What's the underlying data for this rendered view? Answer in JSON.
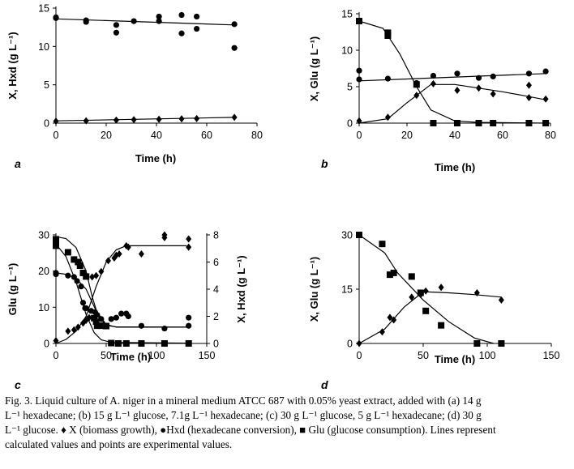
{
  "chart_data": [
    {
      "id": "a",
      "type": "scatter",
      "panel_label": "a",
      "xlabel": "Time (h)",
      "ylabel": "X, Hxd (g L⁻¹)",
      "xlim": [
        0,
        80
      ],
      "ylim": [
        0,
        15
      ],
      "xticks": [
        0,
        20,
        40,
        60,
        80
      ],
      "yticks": [
        0,
        5,
        10,
        15
      ],
      "series": [
        {
          "name": "Hxd",
          "marker": "circle",
          "points": [
            [
              0,
              13.8
            ],
            [
              0,
              13.7
            ],
            [
              12,
              13.4
            ],
            [
              12,
              13.2
            ],
            [
              24,
              12.8
            ],
            [
              24,
              11.8
            ],
            [
              31,
              13.3
            ],
            [
              41,
              13.9
            ],
            [
              41,
              13.3
            ],
            [
              50,
              14.1
            ],
            [
              50,
              11.7
            ],
            [
              56,
              13.9
            ],
            [
              56,
              12.3
            ],
            [
              71,
              12.9
            ],
            [
              71,
              9.8
            ]
          ]
        },
        {
          "name": "X",
          "marker": "diamond",
          "points": [
            [
              0,
              0.25
            ],
            [
              12,
              0.3
            ],
            [
              24,
              0.4
            ],
            [
              31,
              0.45
            ],
            [
              41,
              0.5
            ],
            [
              50,
              0.55
            ],
            [
              56,
              0.6
            ],
            [
              71,
              0.75
            ]
          ]
        },
        {
          "name": "Hxd-fit",
          "marker": "line",
          "points": [
            [
              0,
              13.6
            ],
            [
              71,
              12.8
            ]
          ]
        },
        {
          "name": "X-fit",
          "marker": "line",
          "points": [
            [
              0,
              0.3
            ],
            [
              71,
              0.75
            ]
          ]
        }
      ]
    },
    {
      "id": "b",
      "type": "scatter",
      "panel_label": "b",
      "xlabel": "Time (h)",
      "ylabel": "X, Glu (g L⁻¹)",
      "xlim": [
        0,
        80
      ],
      "ylim": [
        0,
        15
      ],
      "xticks": [
        0,
        20,
        40,
        60,
        80
      ],
      "yticks": [
        0,
        5,
        10,
        15
      ],
      "series": [
        {
          "name": "Glu",
          "marker": "square",
          "points": [
            [
              0,
              14.0
            ],
            [
              12,
              12.4
            ],
            [
              12,
              12.0
            ],
            [
              24,
              5.3
            ],
            [
              31,
              0.0
            ],
            [
              41,
              0.0
            ],
            [
              50,
              0.0
            ],
            [
              56,
              0.0
            ],
            [
              71,
              0.0
            ],
            [
              78,
              0.0
            ]
          ]
        },
        {
          "name": "Hxd",
          "marker": "circle",
          "points": [
            [
              0,
              7.2
            ],
            [
              0,
              6.0
            ],
            [
              12,
              6.1
            ],
            [
              24,
              5.5
            ],
            [
              31,
              6.5
            ],
            [
              41,
              6.8
            ],
            [
              50,
              6.2
            ],
            [
              56,
              6.4
            ],
            [
              71,
              6.8
            ],
            [
              78,
              7.1
            ]
          ]
        },
        {
          "name": "X",
          "marker": "diamond",
          "points": [
            [
              0,
              0.3
            ],
            [
              12,
              0.8
            ],
            [
              24,
              3.8
            ],
            [
              31,
              5.4
            ],
            [
              41,
              4.5
            ],
            [
              50,
              4.8
            ],
            [
              56,
              4.0
            ],
            [
              71,
              5.2
            ],
            [
              71,
              3.5
            ],
            [
              78,
              3.3
            ]
          ]
        },
        {
          "name": "Glu-fit",
          "marker": "line",
          "points": [
            [
              0,
              14.0
            ],
            [
              10,
              13.0
            ],
            [
              17,
              9.5
            ],
            [
              24,
              5.0
            ],
            [
              30,
              1.8
            ],
            [
              40,
              0.3
            ],
            [
              50,
              0.1
            ],
            [
              78,
              0.0
            ]
          ]
        },
        {
          "name": "Hxd-fit",
          "marker": "line",
          "points": [
            [
              0,
              5.8
            ],
            [
              78,
              6.8
            ]
          ]
        },
        {
          "name": "X-fit",
          "marker": "line",
          "points": [
            [
              0,
              0.0
            ],
            [
              12,
              0.6
            ],
            [
              20,
              2.8
            ],
            [
              30,
              5.3
            ],
            [
              40,
              5.3
            ],
            [
              50,
              4.8
            ],
            [
              60,
              4.3
            ],
            [
              70,
              3.7
            ],
            [
              78,
              3.2
            ]
          ]
        }
      ]
    },
    {
      "id": "c",
      "type": "scatter",
      "panel_label": "c",
      "xlabel": "Time (h)",
      "ylabel": "Glu (g L⁻¹)",
      "y2label": "X, Hxd (g L⁻¹)",
      "xlim": [
        0,
        150
      ],
      "ylim": [
        0,
        30
      ],
      "y2lim": [
        0,
        8
      ],
      "xticks": [
        0,
        50,
        100,
        150
      ],
      "yticks": [
        0,
        10,
        20,
        30
      ],
      "y2ticks": [
        0,
        2,
        4,
        6,
        8
      ],
      "series": [
        {
          "name": "Glu",
          "axis": "left",
          "marker": "square",
          "points": [
            [
              0,
              28.8
            ],
            [
              0,
              27.8
            ],
            [
              0,
              27.0
            ],
            [
              12,
              25.2
            ],
            [
              18,
              23.2
            ],
            [
              22,
              22.5
            ],
            [
              24,
              21.5
            ],
            [
              27,
              19.5
            ],
            [
              30,
              18.5
            ],
            [
              38,
              7.0
            ],
            [
              40,
              6.0
            ],
            [
              41,
              4.9
            ],
            [
              45,
              4.9
            ],
            [
              50,
              4.8
            ],
            [
              55,
              0.1
            ],
            [
              62,
              0.0
            ],
            [
              70,
              0.0
            ],
            [
              85,
              0.0
            ],
            [
              108,
              0.0
            ],
            [
              132,
              0.0
            ]
          ]
        },
        {
          "name": "Hxd",
          "axis": "right",
          "marker": "circle",
          "points": [
            [
              0,
              5.2
            ],
            [
              0,
              5.1
            ],
            [
              12,
              5.0
            ],
            [
              18,
              4.9
            ],
            [
              21,
              4.6
            ],
            [
              25,
              4.2
            ],
            [
              27,
              3.0
            ],
            [
              29,
              2.6
            ],
            [
              30,
              2.6
            ],
            [
              35,
              2.4
            ],
            [
              39,
              2.3
            ],
            [
              41,
              2.1
            ],
            [
              45,
              1.8
            ],
            [
              55,
              1.8
            ],
            [
              60,
              1.9
            ],
            [
              65,
              2.2
            ],
            [
              70,
              2.2
            ],
            [
              72,
              2.0
            ],
            [
              85,
              1.3
            ],
            [
              108,
              1.1
            ],
            [
              132,
              1.9
            ],
            [
              132,
              1.3
            ]
          ]
        },
        {
          "name": "X",
          "axis": "right",
          "marker": "diamond",
          "points": [
            [
              0,
              0.2
            ],
            [
              12,
              0.9
            ],
            [
              18,
              1.0
            ],
            [
              22,
              1.2
            ],
            [
              27,
              1.5
            ],
            [
              30,
              1.7
            ],
            [
              33,
              1.9
            ],
            [
              36,
              4.9
            ],
            [
              40,
              5.0
            ],
            [
              45,
              5.3
            ],
            [
              52,
              6.1
            ],
            [
              58,
              6.3
            ],
            [
              60,
              6.5
            ],
            [
              63,
              6.6
            ],
            [
              70,
              7.2
            ],
            [
              72,
              7.1
            ],
            [
              85,
              6.6
            ],
            [
              108,
              8.0
            ],
            [
              108,
              7.8
            ],
            [
              132,
              7.7
            ],
            [
              132,
              7.1
            ]
          ]
        },
        {
          "name": "Glu-fit",
          "axis": "left",
          "marker": "line",
          "points": [
            [
              0,
              29.5
            ],
            [
              10,
              29.0
            ],
            [
              20,
              26.5
            ],
            [
              30,
              20.0
            ],
            [
              36,
              13.0
            ],
            [
              42,
              7.5
            ],
            [
              50,
              5.0
            ],
            [
              60,
              4.6
            ],
            [
              130,
              4.5
            ]
          ]
        },
        {
          "name": "Hxd-fit",
          "axis": "right",
          "marker": "line",
          "points": [
            [
              0,
              5.2
            ],
            [
              10,
              5.1
            ],
            [
              20,
              4.8
            ],
            [
              30,
              4.0
            ],
            [
              40,
              2.4
            ],
            [
              50,
              1.4
            ],
            [
              60,
              1.2
            ],
            [
              70,
              1.2
            ],
            [
              130,
              1.2
            ]
          ]
        },
        {
          "name": "X-fit",
          "axis": "right",
          "marker": "line",
          "points": [
            [
              0,
              0.0
            ],
            [
              10,
              0.3
            ],
            [
              20,
              0.9
            ],
            [
              30,
              2.0
            ],
            [
              40,
              4.2
            ],
            [
              50,
              6.0
            ],
            [
              60,
              6.9
            ],
            [
              70,
              7.2
            ],
            [
              130,
              7.2
            ]
          ]
        },
        {
          "name": "Glu2-fit",
          "axis": "left",
          "marker": "line",
          "points": [
            [
              0,
              27.5
            ],
            [
              10,
              24.0
            ],
            [
              20,
              17.0
            ],
            [
              30,
              8.0
            ],
            [
              38,
              3.0
            ],
            [
              45,
              1.0
            ],
            [
              55,
              0.3
            ],
            [
              130,
              0.1
            ]
          ]
        }
      ]
    },
    {
      "id": "d",
      "type": "scatter",
      "panel_label": "d",
      "xlabel": "Time (h)",
      "ylabel": "X, Glu (g L⁻¹)",
      "xlim": [
        0,
        150
      ],
      "ylim": [
        0,
        30
      ],
      "xticks": [
        0,
        50,
        100,
        150
      ],
      "yticks": [
        0,
        15,
        30
      ],
      "series": [
        {
          "name": "Glu",
          "marker": "square",
          "points": [
            [
              0,
              30.0
            ],
            [
              18,
              27.5
            ],
            [
              24,
              19.0
            ],
            [
              27,
              19.5
            ],
            [
              41,
              18.5
            ],
            [
              48,
              14.0
            ],
            [
              52,
              9.0
            ],
            [
              64,
              5.0
            ],
            [
              92,
              0.0
            ],
            [
              111,
              0.0
            ]
          ]
        },
        {
          "name": "X",
          "marker": "diamond",
          "points": [
            [
              0,
              0.0
            ],
            [
              18,
              3.2
            ],
            [
              24,
              7.2
            ],
            [
              27,
              6.5
            ],
            [
              41,
              12.8
            ],
            [
              48,
              13.5
            ],
            [
              52,
              14.5
            ],
            [
              64,
              15.5
            ],
            [
              92,
              14.0
            ],
            [
              111,
              12.0
            ]
          ]
        },
        {
          "name": "Glu-fit",
          "marker": "line",
          "points": [
            [
              0,
              30.0
            ],
            [
              20,
              25.0
            ],
            [
              30,
              19.5
            ],
            [
              50,
              12.0
            ],
            [
              70,
              6.0
            ],
            [
              90,
              1.5
            ],
            [
              105,
              0.0
            ]
          ]
        },
        {
          "name": "X-fit",
          "marker": "line",
          "points": [
            [
              0,
              0.0
            ],
            [
              20,
              4.0
            ],
            [
              35,
              10.0
            ],
            [
              50,
              14.3
            ],
            [
              70,
              14.0
            ],
            [
              90,
              13.5
            ],
            [
              111,
              12.8
            ]
          ]
        }
      ]
    }
  ],
  "caption": {
    "lines": [
      "Fig. 3. Liquid culture of A. niger in a mineral medium ATCC 687 with 0.05% yeast extract, added with (a) 14 g",
      "L⁻¹ hexadecane; (b) 15 g L⁻¹ glucose, 7.1g L⁻¹ hexadecane; (c) 30 g L⁻¹ glucose, 5 g L⁻¹ hexadecane; (d) 30 g",
      "L⁻¹ glucose. ♦ X (biomass growth), ●Hxd (hexadecane conversion), ■ Glu (glucose consumption). Lines represent",
      "calculated values and points are experimental values."
    ]
  }
}
